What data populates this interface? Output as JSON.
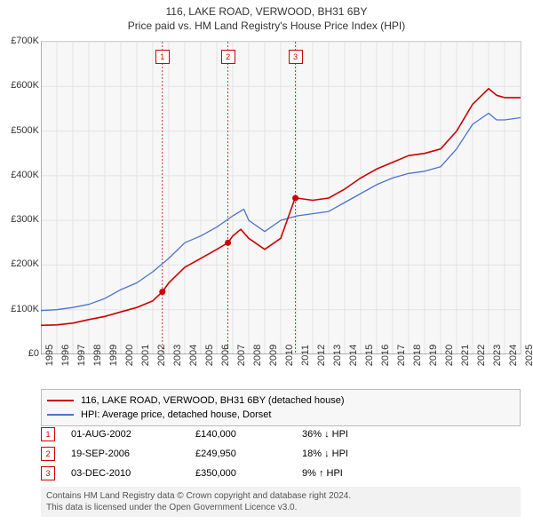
{
  "title": {
    "line1": "116, LAKE ROAD, VERWOOD, BH31 6BY",
    "line2": "Price paid vs. HM Land Registry's House Price Index (HPI)"
  },
  "chart": {
    "type": "line",
    "background_color": "#f7f7f7",
    "grid_color": "#e3e3e3",
    "axis_color": "#666666",
    "label_color": "#333333",
    "label_fontsize": 11,
    "y": {
      "min": 0,
      "max": 700000,
      "tick_step": 100000,
      "tick_labels": [
        "£0",
        "£100K",
        "£200K",
        "£300K",
        "£400K",
        "£500K",
        "£600K",
        "£700K"
      ]
    },
    "x": {
      "years": [
        1995,
        1996,
        1997,
        1998,
        1999,
        2000,
        2001,
        2002,
        2003,
        2004,
        2005,
        2006,
        2007,
        2008,
        2009,
        2010,
        2011,
        2012,
        2013,
        2014,
        2015,
        2016,
        2017,
        2018,
        2019,
        2020,
        2021,
        2022,
        2023,
        2024,
        2025
      ]
    },
    "series": [
      {
        "name": "116, LAKE ROAD, VERWOOD, BH31 6BY (detached house)",
        "color": "#cc0000",
        "width": 1.6,
        "points": [
          [
            1995,
            65000
          ],
          [
            1996,
            66000
          ],
          [
            1997,
            70000
          ],
          [
            1998,
            78000
          ],
          [
            1999,
            85000
          ],
          [
            2000,
            95000
          ],
          [
            2001,
            105000
          ],
          [
            2002,
            120000
          ],
          [
            2002.6,
            140000
          ],
          [
            2003,
            160000
          ],
          [
            2004,
            195000
          ],
          [
            2005,
            215000
          ],
          [
            2006,
            235000
          ],
          [
            2006.7,
            249950
          ],
          [
            2007,
            265000
          ],
          [
            2007.5,
            280000
          ],
          [
            2008,
            260000
          ],
          [
            2009,
            235000
          ],
          [
            2010,
            260000
          ],
          [
            2010.9,
            350000
          ],
          [
            2011,
            350000
          ],
          [
            2012,
            345000
          ],
          [
            2013,
            350000
          ],
          [
            2014,
            370000
          ],
          [
            2015,
            395000
          ],
          [
            2016,
            415000
          ],
          [
            2017,
            430000
          ],
          [
            2018,
            445000
          ],
          [
            2019,
            450000
          ],
          [
            2020,
            460000
          ],
          [
            2021,
            500000
          ],
          [
            2022,
            560000
          ],
          [
            2023,
            595000
          ],
          [
            2023.5,
            580000
          ],
          [
            2024,
            575000
          ],
          [
            2025,
            575000
          ]
        ]
      },
      {
        "name": "HPI: Average price, detached house, Dorset",
        "color": "#4a74c9",
        "width": 1.3,
        "points": [
          [
            1995,
            98000
          ],
          [
            1996,
            100000
          ],
          [
            1997,
            105000
          ],
          [
            1998,
            112000
          ],
          [
            1999,
            125000
          ],
          [
            2000,
            145000
          ],
          [
            2001,
            160000
          ],
          [
            2002,
            185000
          ],
          [
            2003,
            215000
          ],
          [
            2004,
            250000
          ],
          [
            2005,
            265000
          ],
          [
            2006,
            285000
          ],
          [
            2007,
            310000
          ],
          [
            2007.7,
            325000
          ],
          [
            2008,
            300000
          ],
          [
            2009,
            275000
          ],
          [
            2010,
            300000
          ],
          [
            2011,
            310000
          ],
          [
            2012,
            315000
          ],
          [
            2013,
            320000
          ],
          [
            2014,
            340000
          ],
          [
            2015,
            360000
          ],
          [
            2016,
            380000
          ],
          [
            2017,
            395000
          ],
          [
            2018,
            405000
          ],
          [
            2019,
            410000
          ],
          [
            2020,
            420000
          ],
          [
            2021,
            460000
          ],
          [
            2022,
            515000
          ],
          [
            2023,
            540000
          ],
          [
            2023.5,
            525000
          ],
          [
            2024,
            525000
          ],
          [
            2025,
            530000
          ]
        ]
      }
    ],
    "event_markers": [
      {
        "label": "1",
        "year": 2002.6,
        "price": 140000
      },
      {
        "label": "2",
        "year": 2006.7,
        "price": 249950
      },
      {
        "label": "3",
        "year": 2010.92,
        "price": 350000
      }
    ],
    "marker_line_color": "#cc0000",
    "marker_box_border": "#cc0000",
    "marker_box_bg": "#ffffff",
    "point_color": "#cc0000"
  },
  "legend": {
    "items": [
      {
        "color": "#cc0000",
        "label": "116, LAKE ROAD, VERWOOD, BH31 6BY (detached house)"
      },
      {
        "color": "#4a74c9",
        "label": "HPI: Average price, detached house, Dorset"
      }
    ]
  },
  "events": [
    {
      "label": "1",
      "date": "01-AUG-2002",
      "price": "£140,000",
      "delta": "36% ↓ HPI"
    },
    {
      "label": "2",
      "date": "19-SEP-2006",
      "price": "£249,950",
      "delta": "18% ↓ HPI"
    },
    {
      "label": "3",
      "date": "03-DEC-2010",
      "price": "£350,000",
      "delta": "9% ↑ HPI"
    }
  ],
  "footer": {
    "line1": "Contains HM Land Registry data © Crown copyright and database right 2024.",
    "line2": "This data is licensed under the Open Government Licence v3.0."
  }
}
